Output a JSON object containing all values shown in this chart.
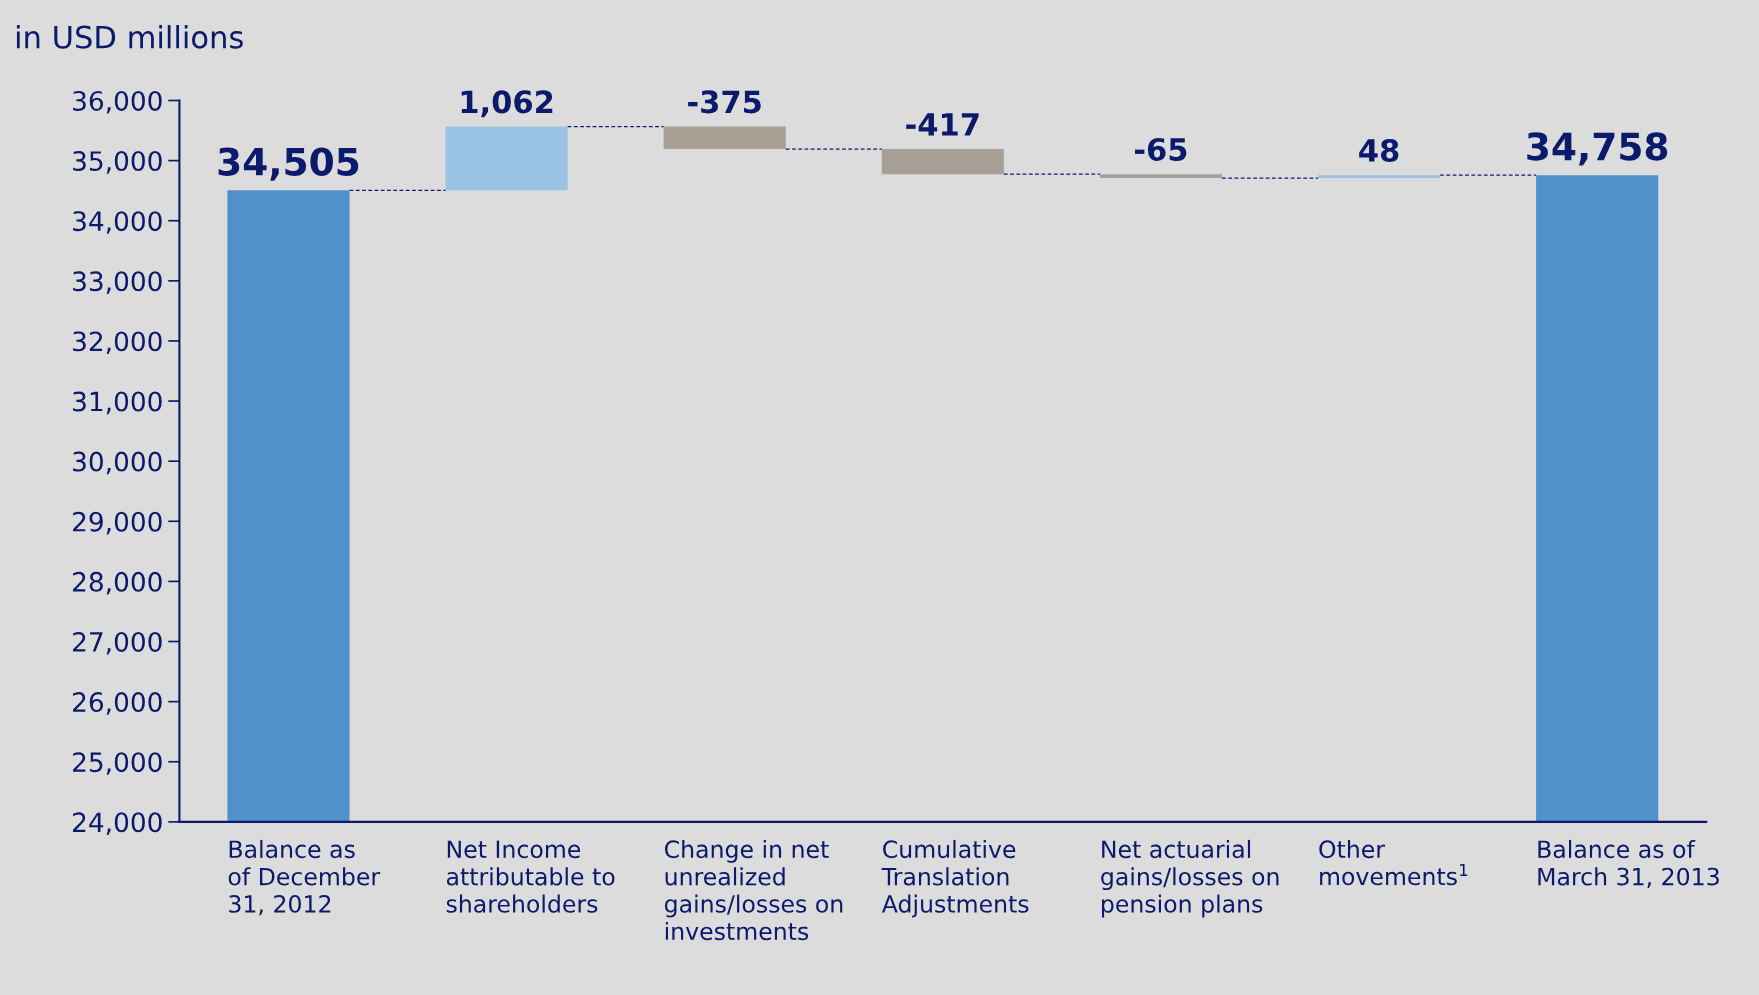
{
  "chart_data": {
    "type": "bar",
    "ylabel": "in USD millions",
    "categories": [
      "Balance as\nof December\n31, 2012",
      "Net Income\nattributable to\nshareholders",
      "Change in net\nunrealized\ngains/losses on\ninvestments",
      "Cumulative\nTranslation\nAdjustments",
      "Net actuarial\ngains/losses on\npension plans",
      "Other\nmovements$^{1}$",
      "Balance as of\nMarch 31, 2013"
    ],
    "values": [
      34505,
      1062,
      -375,
      -417,
      -65,
      48,
      34758
    ],
    "base": [
      null,
      34505,
      35567,
      35192,
      34775,
      34710,
      null
    ],
    "colors": [
      "#4f91c8",
      "#99c2e5",
      "#a89f95",
      "#a89f95",
      "#a89f95",
      "#99c2e5",
      "#4f91c8"
    ],
    "value_labels": [
      "34,505",
      "1,062",
      "-375",
      "-417",
      "-65",
      "48",
      "34,758"
    ],
    "ylim": [
      24000,
      36000
    ],
    "yticks": [
      {
        "value": 24000,
        "label": "24,000"
      },
      {
        "value": 25000,
        "label": "25,000"
      },
      {
        "value": 26000,
        "label": "26,000"
      },
      {
        "value": 27000,
        "label": "27,000"
      },
      {
        "value": 28000,
        "label": "28,000"
      },
      {
        "value": 29000,
        "label": "29,000"
      },
      {
        "value": 30000,
        "label": "30,000"
      },
      {
        "value": 31000,
        "label": "31,000"
      },
      {
        "value": 32000,
        "label": "32,000"
      },
      {
        "value": 33000,
        "label": "33,000"
      },
      {
        "value": 34000,
        "label": "34,000"
      },
      {
        "value": 35000,
        "label": "35,000"
      },
      {
        "value": 36000,
        "label": "36,000"
      }
    ],
    "grid": false,
    "legend": false
  }
}
